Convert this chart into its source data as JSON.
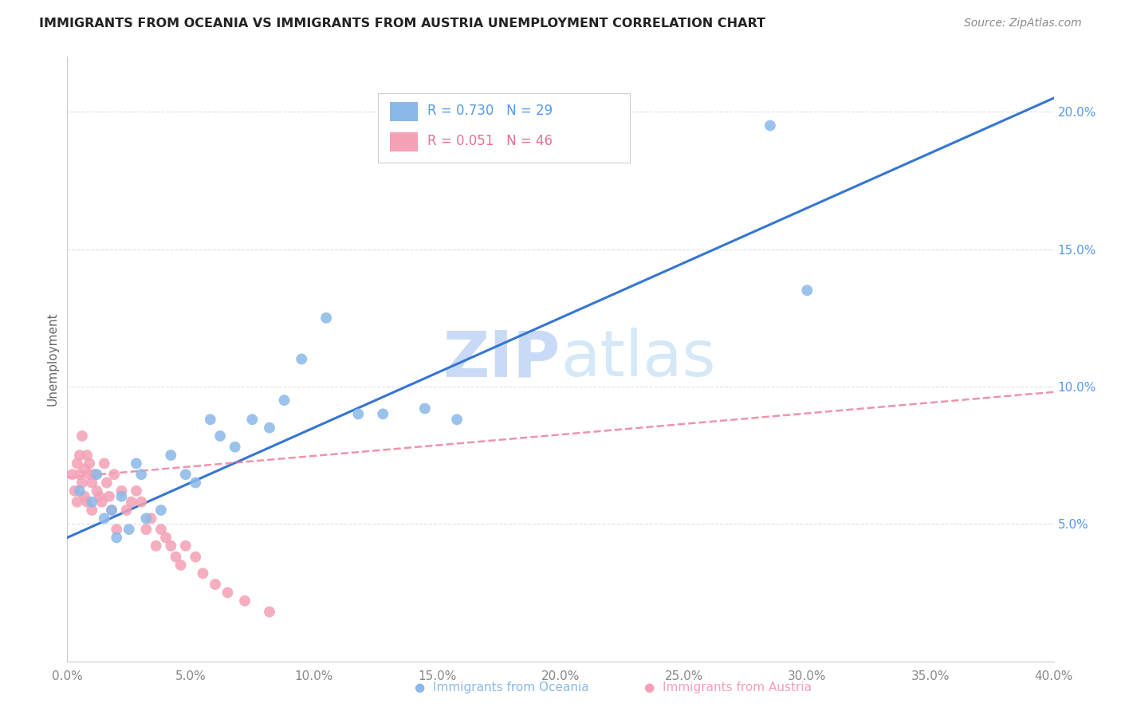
{
  "title": "IMMIGRANTS FROM OCEANIA VS IMMIGRANTS FROM AUSTRIA UNEMPLOYMENT CORRELATION CHART",
  "source": "Source: ZipAtlas.com",
  "ylabel": "Unemployment",
  "xlim": [
    0.0,
    0.4
  ],
  "ylim": [
    0.0,
    0.22
  ],
  "yticks_right": [
    0.05,
    0.1,
    0.15,
    0.2
  ],
  "ytick_labels_right": [
    "5.0%",
    "10.0%",
    "15.0%",
    "20.0%"
  ],
  "xticks": [
    0.0,
    0.05,
    0.1,
    0.15,
    0.2,
    0.25,
    0.3,
    0.35,
    0.4
  ],
  "xtick_labels": [
    "0.0%",
    "5.0%",
    "10.0%",
    "15.0%",
    "20.0%",
    "25.0%",
    "30.0%",
    "35.0%",
    "40.0%"
  ],
  "oceania_color": "#8ab8e8",
  "austria_color": "#f4a0b5",
  "oceania_line_color": "#3575d4",
  "austria_line_color": "#e87a95",
  "R_oceania": 0.73,
  "N_oceania": 29,
  "R_austria": 0.051,
  "N_austria": 46,
  "watermark_zip": "ZIP",
  "watermark_atlas": "atlas",
  "oceania_x": [
    0.005,
    0.01,
    0.012,
    0.015,
    0.018,
    0.02,
    0.022,
    0.025,
    0.028,
    0.03,
    0.032,
    0.038,
    0.042,
    0.048,
    0.052,
    0.058,
    0.062,
    0.068,
    0.075,
    0.082,
    0.088,
    0.095,
    0.105,
    0.118,
    0.128,
    0.145,
    0.158,
    0.285,
    0.3
  ],
  "oceania_y": [
    0.062,
    0.058,
    0.068,
    0.052,
    0.055,
    0.045,
    0.06,
    0.048,
    0.072,
    0.068,
    0.052,
    0.055,
    0.075,
    0.068,
    0.065,
    0.088,
    0.082,
    0.078,
    0.088,
    0.085,
    0.095,
    0.11,
    0.125,
    0.09,
    0.09,
    0.092,
    0.088,
    0.195,
    0.135
  ],
  "austria_x": [
    0.002,
    0.003,
    0.004,
    0.004,
    0.005,
    0.005,
    0.006,
    0.006,
    0.007,
    0.007,
    0.008,
    0.008,
    0.009,
    0.009,
    0.01,
    0.01,
    0.011,
    0.012,
    0.013,
    0.014,
    0.015,
    0.016,
    0.017,
    0.018,
    0.019,
    0.02,
    0.022,
    0.024,
    0.026,
    0.028,
    0.03,
    0.032,
    0.034,
    0.036,
    0.038,
    0.04,
    0.042,
    0.044,
    0.046,
    0.048,
    0.052,
    0.055,
    0.06,
    0.065,
    0.072,
    0.082
  ],
  "austria_y": [
    0.068,
    0.062,
    0.072,
    0.058,
    0.075,
    0.068,
    0.082,
    0.065,
    0.07,
    0.06,
    0.075,
    0.058,
    0.068,
    0.072,
    0.065,
    0.055,
    0.068,
    0.062,
    0.06,
    0.058,
    0.072,
    0.065,
    0.06,
    0.055,
    0.068,
    0.048,
    0.062,
    0.055,
    0.058,
    0.062,
    0.058,
    0.048,
    0.052,
    0.042,
    0.048,
    0.045,
    0.042,
    0.038,
    0.035,
    0.042,
    0.038,
    0.032,
    0.028,
    0.025,
    0.022,
    0.018
  ],
  "oceania_line_x0": 0.0,
  "oceania_line_y0": 0.045,
  "oceania_line_x1": 0.4,
  "oceania_line_y1": 0.205,
  "austria_line_x0": 0.0,
  "austria_line_y0": 0.067,
  "austria_line_x1": 0.4,
  "austria_line_y1": 0.098
}
